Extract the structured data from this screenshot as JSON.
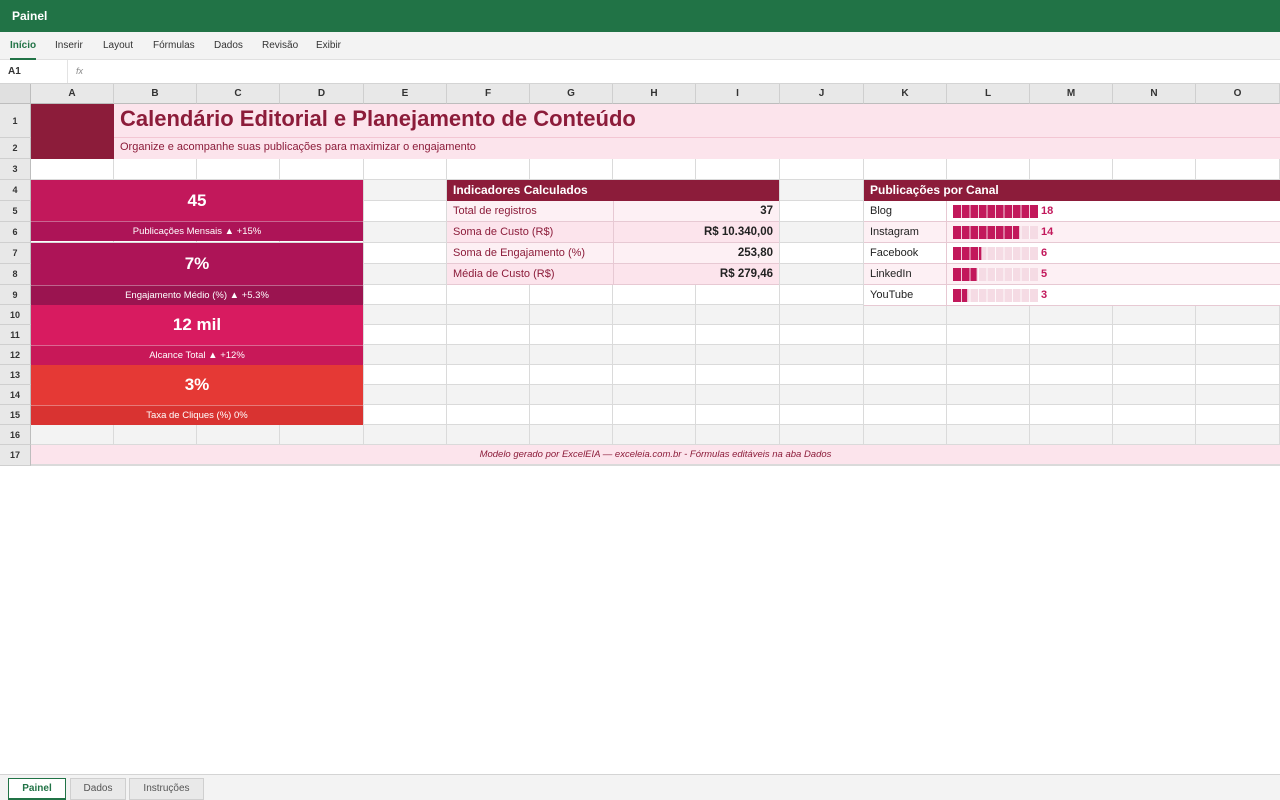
{
  "titlebar": {
    "title": "Painel"
  },
  "ribbon": {
    "tabs": [
      "Início",
      "Inserir",
      "Layout",
      "Fórmulas",
      "Dados",
      "Revisão",
      "Exibir"
    ],
    "active": "Início"
  },
  "formula_bar": {
    "cell_ref": "A1",
    "fx_label": "fx",
    "formula": ""
  },
  "columns": [
    "A",
    "B",
    "C",
    "D",
    "E",
    "F",
    "G",
    "H",
    "I",
    "J",
    "K",
    "L",
    "M",
    "N",
    "O"
  ],
  "rows": [
    "1",
    "2",
    "3",
    "4",
    "5",
    "6",
    "7",
    "8",
    "9",
    "10",
    "11",
    "12",
    "13",
    "14",
    "15",
    "16",
    "17"
  ],
  "header": {
    "title": "Calendário Editorial e Planejamento de Conteúdo",
    "subtitle": "Organize e acompanhe suas publicações para maximizar o engajamento"
  },
  "kpis": [
    {
      "value": "45",
      "label": "Publicações Mensais ▲ +15%",
      "color": "#c2185b",
      "label_color": "#ad1457"
    },
    {
      "value": "7%",
      "label": "Engajamento Médio (%) ▲ +5.3%",
      "color": "#ad1457",
      "label_color": "#9b1450"
    },
    {
      "value": "12 mil",
      "label": "Alcance Total ▲ +12%",
      "color": "#d81b60",
      "label_color": "#c81858"
    },
    {
      "value": "3%",
      "label": "Taxa de Cliques (%) 0%",
      "color": "#e53935",
      "label_color": "#d93331"
    }
  ],
  "indicators": {
    "title": "Indicadores Calculados",
    "rows": [
      {
        "label": "Total de registros",
        "value": "37"
      },
      {
        "label": "Soma de Custo (R$)",
        "value": "R$ 10.340,00"
      },
      {
        "label": "Soma de Engajamento (%)",
        "value": "253,80"
      },
      {
        "label": "Média de Custo (R$)",
        "value": "R$ 279,46"
      }
    ]
  },
  "channels": {
    "title": "Publicações por Canal",
    "max": 18,
    "rows": [
      {
        "label": "Blog",
        "value": 18,
        "display": "18"
      },
      {
        "label": "Instagram",
        "value": 14,
        "display": "14"
      },
      {
        "label": "Facebook",
        "value": 6,
        "display": "6"
      },
      {
        "label": "LinkedIn",
        "value": 5,
        "display": "5"
      },
      {
        "label": "YouTube",
        "value": 3,
        "display": "3"
      }
    ]
  },
  "footer": {
    "text": "Modelo gerado por ExcelEIA — exceleia.com.br - Fórmulas editáveis na aba Dados"
  },
  "sheets": {
    "tabs": [
      "Painel",
      "Dados",
      "Instruções"
    ],
    "active": "Painel"
  },
  "colors": {
    "brand": "#217346",
    "accent": "#8c1c3a",
    "bar": "#c2185b",
    "band": "#fce4ec"
  }
}
